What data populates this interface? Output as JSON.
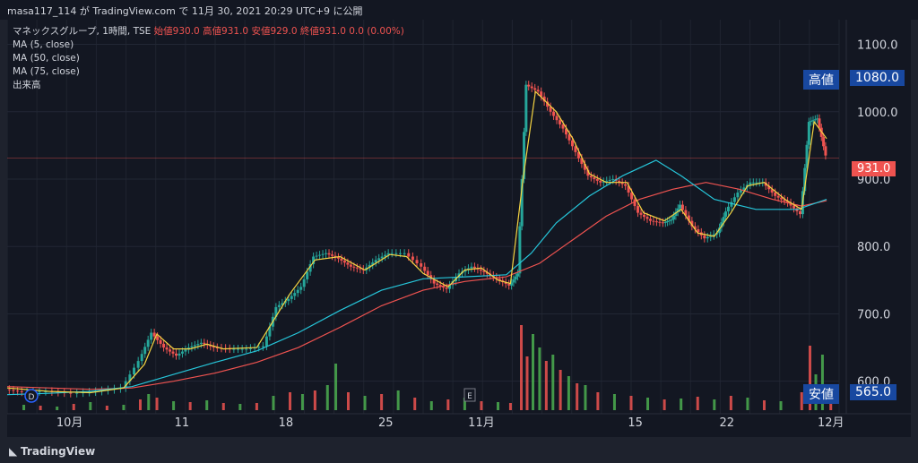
{
  "topbar": {
    "text": "masa117_114 が TradingView.com で 11月 30, 2021 20:29 UTC+9 に公開"
  },
  "legend": {
    "title": "マネックスグループ, 1時間, TSE",
    "ohlc": "始値930.0  高値931.0  安値929.0  終値931.0  0.0 (0.00%)",
    "ma5": "MA (5, close)",
    "ma50": "MA (50, close)",
    "ma75": "MA (75, close)",
    "volume": "出来高"
  },
  "tags": {
    "high_label": "高値",
    "high_value": "1080.0",
    "low_label": "安値",
    "low_value": "565.0",
    "last_value": "931.0"
  },
  "footer": {
    "logo_text": "TradingView"
  },
  "markers": {
    "dividend": "D",
    "earnings": "E"
  },
  "colors": {
    "up": "#26a69a",
    "down": "#ef5350",
    "ma5": "#f5d442",
    "ma50": "#26c6da",
    "ma75": "#ef5350",
    "bg": "#131722",
    "volUp": "#4caf50",
    "volDown": "#ef5350"
  },
  "chart_data": {
    "type": "candlestick",
    "title": "マネックスグループ, 1時間, TSE",
    "ylim": [
      565,
      1110
    ],
    "yticks": [
      "1100.0",
      "1000.0",
      "900.0",
      "800.0",
      "700.0",
      "600.0"
    ],
    "xticks": [
      "10月",
      "11",
      "18",
      "25",
      "11月",
      "15",
      "22",
      "12月"
    ],
    "price_path": [
      [
        0,
        588
      ],
      [
        0.02,
        584
      ],
      [
        0.05,
        585
      ],
      [
        0.08,
        582
      ],
      [
        0.11,
        585
      ],
      [
        0.14,
        590
      ],
      [
        0.16,
        630
      ],
      [
        0.175,
        672
      ],
      [
        0.19,
        650
      ],
      [
        0.205,
        638
      ],
      [
        0.22,
        650
      ],
      [
        0.235,
        657
      ],
      [
        0.25,
        650
      ],
      [
        0.27,
        648
      ],
      [
        0.29,
        648
      ],
      [
        0.31,
        652
      ],
      [
        0.325,
        710
      ],
      [
        0.34,
        722
      ],
      [
        0.355,
        740
      ],
      [
        0.37,
        785
      ],
      [
        0.385,
        790
      ],
      [
        0.4,
        782
      ],
      [
        0.415,
        770
      ],
      [
        0.43,
        765
      ],
      [
        0.445,
        780
      ],
      [
        0.46,
        790
      ],
      [
        0.48,
        790
      ],
      [
        0.5,
        770
      ],
      [
        0.515,
        745
      ],
      [
        0.53,
        737
      ],
      [
        0.545,
        760
      ],
      [
        0.56,
        770
      ],
      [
        0.575,
        762
      ],
      [
        0.59,
        752
      ],
      [
        0.605,
        742
      ],
      [
        0.615,
        760
      ],
      [
        0.625,
        1040
      ],
      [
        0.64,
        1030
      ],
      [
        0.655,
        1000
      ],
      [
        0.67,
        975
      ],
      [
        0.685,
        940
      ],
      [
        0.7,
        905
      ],
      [
        0.715,
        895
      ],
      [
        0.73,
        900
      ],
      [
        0.745,
        890
      ],
      [
        0.76,
        850
      ],
      [
        0.775,
        838
      ],
      [
        0.79,
        835
      ],
      [
        0.8,
        840
      ],
      [
        0.81,
        862
      ],
      [
        0.825,
        830
      ],
      [
        0.84,
        812
      ],
      [
        0.855,
        820
      ],
      [
        0.865,
        852
      ],
      [
        0.88,
        880
      ],
      [
        0.895,
        895
      ],
      [
        0.91,
        895
      ],
      [
        0.925,
        875
      ],
      [
        0.94,
        865
      ],
      [
        0.955,
        848
      ],
      [
        0.965,
        985
      ],
      [
        0.975,
        990
      ],
      [
        0.985,
        935
      ]
    ],
    "ma5": [
      [
        0,
        590
      ],
      [
        0.05,
        585
      ],
      [
        0.1,
        583
      ],
      [
        0.14,
        590
      ],
      [
        0.165,
        625
      ],
      [
        0.18,
        670
      ],
      [
        0.2,
        648
      ],
      [
        0.22,
        648
      ],
      [
        0.24,
        655
      ],
      [
        0.26,
        648
      ],
      [
        0.3,
        650
      ],
      [
        0.32,
        690
      ],
      [
        0.34,
        730
      ],
      [
        0.37,
        780
      ],
      [
        0.4,
        785
      ],
      [
        0.43,
        765
      ],
      [
        0.46,
        788
      ],
      [
        0.48,
        785
      ],
      [
        0.5,
        760
      ],
      [
        0.53,
        740
      ],
      [
        0.55,
        765
      ],
      [
        0.57,
        768
      ],
      [
        0.59,
        750
      ],
      [
        0.605,
        745
      ],
      [
        0.62,
        900
      ],
      [
        0.635,
        1030
      ],
      [
        0.66,
        1000
      ],
      [
        0.68,
        960
      ],
      [
        0.7,
        908
      ],
      [
        0.72,
        895
      ],
      [
        0.745,
        895
      ],
      [
        0.765,
        850
      ],
      [
        0.79,
        838
      ],
      [
        0.81,
        855
      ],
      [
        0.83,
        820
      ],
      [
        0.85,
        815
      ],
      [
        0.87,
        850
      ],
      [
        0.89,
        890
      ],
      [
        0.91,
        895
      ],
      [
        0.935,
        870
      ],
      [
        0.955,
        855
      ],
      [
        0.97,
        985
      ],
      [
        0.985,
        960
      ]
    ],
    "ma50": [
      [
        0,
        580
      ],
      [
        0.05,
        582
      ],
      [
        0.1,
        585
      ],
      [
        0.15,
        592
      ],
      [
        0.2,
        610
      ],
      [
        0.25,
        628
      ],
      [
        0.3,
        645
      ],
      [
        0.35,
        672
      ],
      [
        0.4,
        705
      ],
      [
        0.45,
        735
      ],
      [
        0.5,
        752
      ],
      [
        0.55,
        755
      ],
      [
        0.6,
        758
      ],
      [
        0.63,
        790
      ],
      [
        0.66,
        835
      ],
      [
        0.7,
        875
      ],
      [
        0.74,
        905
      ],
      [
        0.78,
        928
      ],
      [
        0.81,
        905
      ],
      [
        0.85,
        870
      ],
      [
        0.9,
        855
      ],
      [
        0.95,
        855
      ],
      [
        0.985,
        870
      ]
    ],
    "ma75": [
      [
        0,
        592
      ],
      [
        0.05,
        590
      ],
      [
        0.1,
        588
      ],
      [
        0.15,
        590
      ],
      [
        0.2,
        600
      ],
      [
        0.25,
        612
      ],
      [
        0.3,
        628
      ],
      [
        0.35,
        650
      ],
      [
        0.4,
        680
      ],
      [
        0.45,
        712
      ],
      [
        0.5,
        735
      ],
      [
        0.55,
        748
      ],
      [
        0.6,
        755
      ],
      [
        0.64,
        775
      ],
      [
        0.68,
        810
      ],
      [
        0.72,
        845
      ],
      [
        0.76,
        870
      ],
      [
        0.8,
        885
      ],
      [
        0.84,
        895
      ],
      [
        0.88,
        885
      ],
      [
        0.92,
        870
      ],
      [
        0.955,
        860
      ],
      [
        0.985,
        868
      ]
    ],
    "volume_bars": [
      [
        0.02,
        6,
        1
      ],
      [
        0.04,
        5,
        0
      ],
      [
        0.06,
        4,
        1
      ],
      [
        0.08,
        7,
        0
      ],
      [
        0.1,
        9,
        1
      ],
      [
        0.12,
        5,
        0
      ],
      [
        0.14,
        6,
        1
      ],
      [
        0.16,
        12,
        0
      ],
      [
        0.17,
        18,
        1
      ],
      [
        0.18,
        14,
        0
      ],
      [
        0.2,
        10,
        1
      ],
      [
        0.22,
        9,
        0
      ],
      [
        0.24,
        11,
        1
      ],
      [
        0.26,
        8,
        0
      ],
      [
        0.28,
        7,
        1
      ],
      [
        0.3,
        8,
        0
      ],
      [
        0.32,
        16,
        1
      ],
      [
        0.34,
        20,
        0
      ],
      [
        0.355,
        18,
        1
      ],
      [
        0.37,
        22,
        0
      ],
      [
        0.385,
        28,
        1
      ],
      [
        0.395,
        52,
        1
      ],
      [
        0.41,
        20,
        0
      ],
      [
        0.43,
        16,
        1
      ],
      [
        0.45,
        18,
        0
      ],
      [
        0.47,
        22,
        1
      ],
      [
        0.49,
        14,
        0
      ],
      [
        0.51,
        10,
        1
      ],
      [
        0.53,
        12,
        0
      ],
      [
        0.55,
        14,
        1
      ],
      [
        0.57,
        10,
        0
      ],
      [
        0.59,
        9,
        1
      ],
      [
        0.605,
        8,
        0
      ],
      [
        0.618,
        95,
        0
      ],
      [
        0.625,
        60,
        0
      ],
      [
        0.632,
        85,
        1
      ],
      [
        0.64,
        70,
        1
      ],
      [
        0.648,
        55,
        0
      ],
      [
        0.656,
        62,
        1
      ],
      [
        0.665,
        45,
        0
      ],
      [
        0.675,
        38,
        1
      ],
      [
        0.685,
        30,
        0
      ],
      [
        0.695,
        28,
        1
      ],
      [
        0.71,
        20,
        0
      ],
      [
        0.73,
        18,
        1
      ],
      [
        0.75,
        16,
        0
      ],
      [
        0.77,
        14,
        1
      ],
      [
        0.79,
        12,
        0
      ],
      [
        0.81,
        13,
        1
      ],
      [
        0.83,
        15,
        0
      ],
      [
        0.85,
        12,
        1
      ],
      [
        0.87,
        16,
        0
      ],
      [
        0.89,
        14,
        1
      ],
      [
        0.91,
        11,
        0
      ],
      [
        0.93,
        10,
        1
      ],
      [
        0.955,
        20,
        0
      ],
      [
        0.965,
        72,
        0
      ],
      [
        0.972,
        40,
        1
      ],
      [
        0.98,
        62,
        1
      ],
      [
        0.99,
        18,
        0
      ]
    ]
  }
}
